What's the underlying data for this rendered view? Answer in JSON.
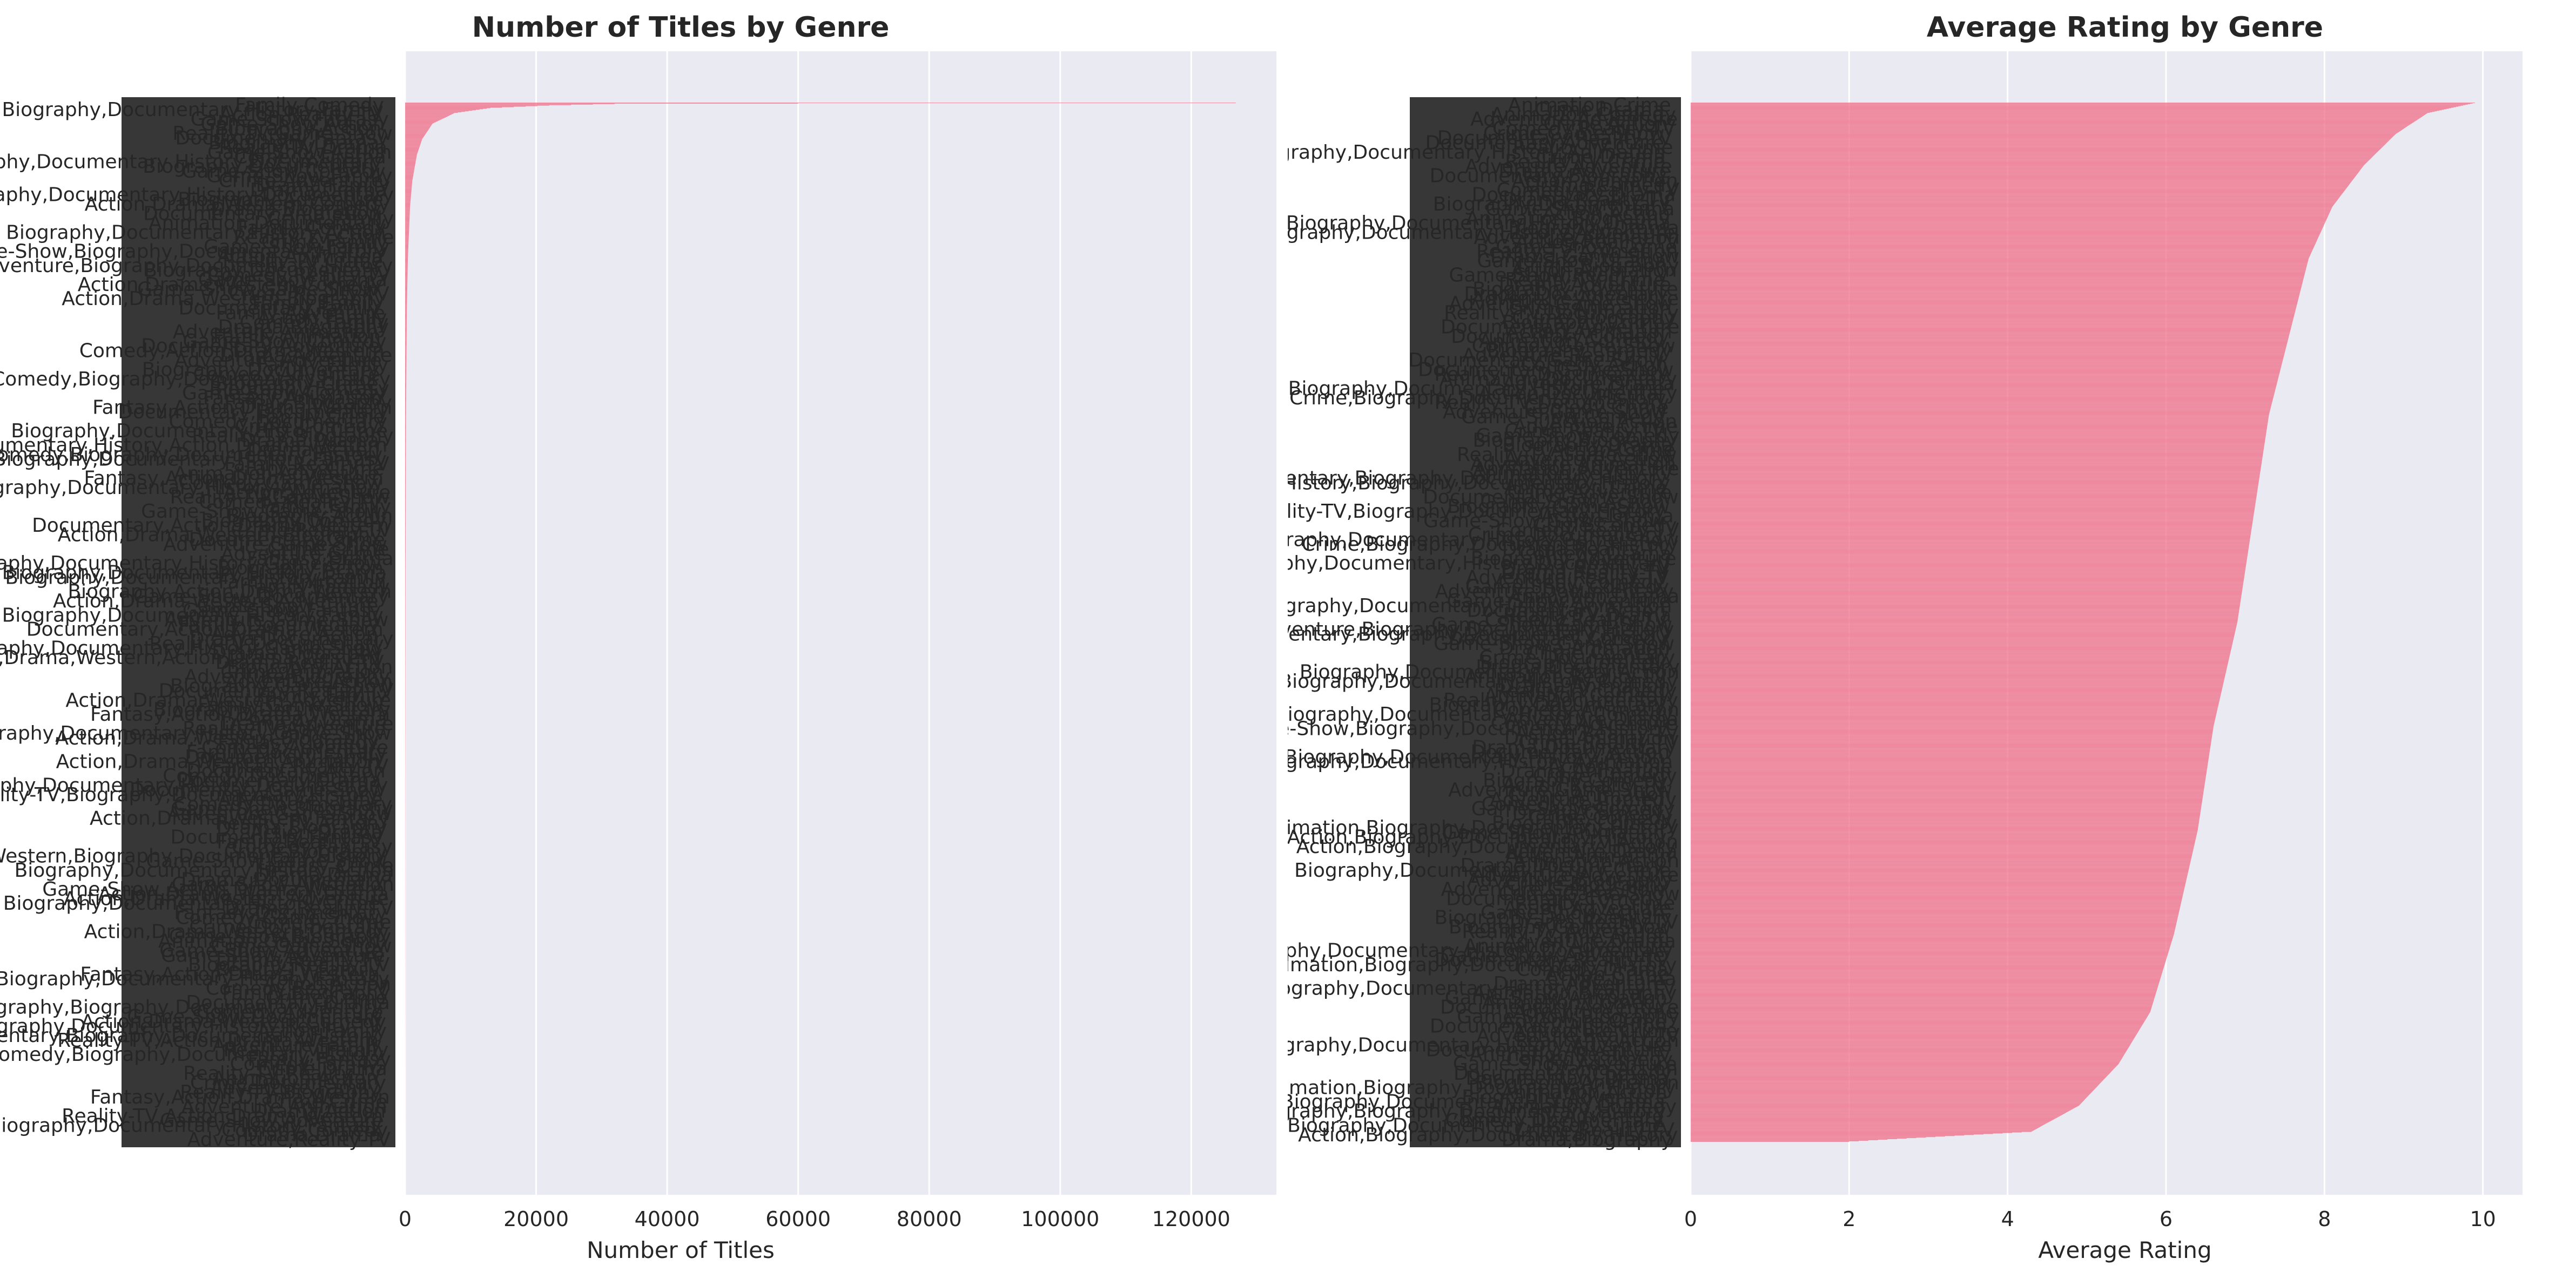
{
  "colors": {
    "bar": "#f0738c",
    "axes_bg": "#eaeaf2",
    "grid": "#ffffff",
    "text": "#262626"
  },
  "chart_data": [
    {
      "type": "bar",
      "orientation": "horizontal",
      "title": "Number of Titles by Genre",
      "xlabel": "Number of Titles",
      "ylabel": "",
      "xlim": [
        0,
        133000
      ],
      "xticks": [
        0,
        20000,
        40000,
        60000,
        80000,
        100000,
        120000
      ],
      "xtick_labels": [
        "0",
        "20000",
        "40000",
        "60000",
        "80000",
        "100000",
        "120000"
      ],
      "grid": true,
      "legend": "none",
      "sorted": "descending",
      "n_categories": 2000,
      "categories_visible": [
        "Action,Drama,Western",
        "Adventure",
        "Action",
        "Biography",
        "Comedy",
        "Drama",
        "Documentary",
        "Animation",
        "Crime",
        "Family",
        "Fantasy",
        "Game-Show",
        "Reality-TV",
        "Biography,Documentary,History"
      ],
      "value_profile": [
        [
          0,
          126800
        ],
        [
          1,
          60000
        ],
        [
          2,
          32000
        ],
        [
          5,
          22000
        ],
        [
          10,
          13000
        ],
        [
          20,
          7500
        ],
        [
          40,
          4200
        ],
        [
          70,
          2600
        ],
        [
          100,
          1800
        ],
        [
          150,
          1100
        ],
        [
          200,
          750
        ],
        [
          300,
          420
        ],
        [
          400,
          260
        ],
        [
          600,
          140
        ],
        [
          900,
          70
        ],
        [
          1300,
          30
        ],
        [
          1999,
          2
        ]
      ]
    },
    {
      "type": "bar",
      "orientation": "horizontal",
      "title": "Average Rating by Genre",
      "xlabel": "Average Rating",
      "ylabel": "",
      "xlim": [
        0,
        10.5
      ],
      "xticks": [
        0,
        2,
        4,
        6,
        8,
        10
      ],
      "xtick_labels": [
        "0",
        "2",
        "4",
        "6",
        "8",
        "10"
      ],
      "grid": true,
      "legend": "none",
      "sorted": "descending",
      "n_categories": 2000,
      "categories_visible": [
        "Adventure",
        "Biography",
        "Documentary",
        "Action",
        "Comedy",
        "Drama",
        "Game-Show",
        "Reality-TV",
        "Crime",
        "Animation",
        "Biography,Documentary,History"
      ],
      "value_profile": [
        [
          0,
          9.9
        ],
        [
          20,
          9.3
        ],
        [
          60,
          8.9
        ],
        [
          120,
          8.5
        ],
        [
          200,
          8.1
        ],
        [
          300,
          7.8
        ],
        [
          420,
          7.6
        ],
        [
          600,
          7.3
        ],
        [
          800,
          7.1
        ],
        [
          1000,
          6.9
        ],
        [
          1200,
          6.6
        ],
        [
          1400,
          6.4
        ],
        [
          1600,
          6.1
        ],
        [
          1750,
          5.8
        ],
        [
          1850,
          5.4
        ],
        [
          1930,
          4.9
        ],
        [
          1980,
          4.3
        ],
        [
          1999,
          2.0
        ]
      ]
    }
  ]
}
